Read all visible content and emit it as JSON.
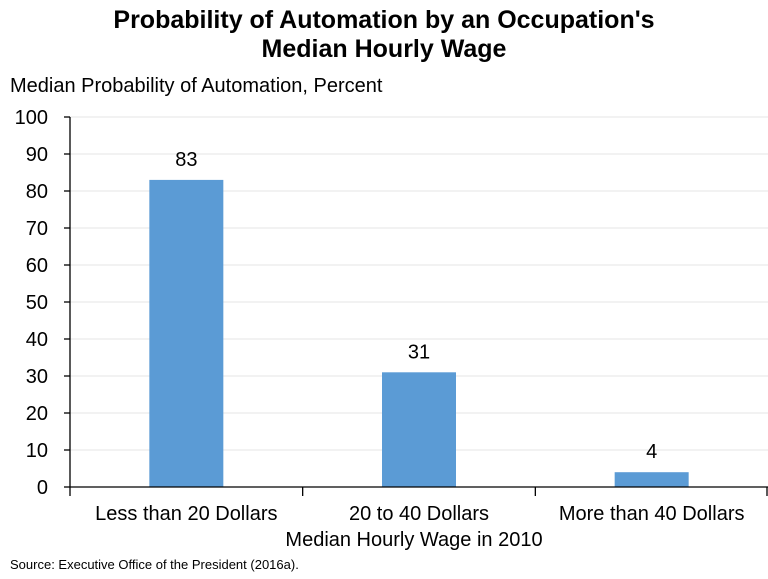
{
  "chart_data": {
    "type": "bar",
    "title_line1": "Probability of Automation by an Occupation's",
    "title_line2": "Median Hourly Wage",
    "ylabel": "Median Probability of Automation, Percent",
    "xlabel": "Median Hourly Wage in 2010",
    "categories": [
      "Less than 20 Dollars",
      "20 to 40 Dollars",
      "More than 40 Dollars"
    ],
    "values": [
      83,
      31,
      4
    ],
    "ylim": [
      0,
      100
    ],
    "yticks": [
      0,
      10,
      20,
      30,
      40,
      50,
      60,
      70,
      80,
      90,
      100
    ],
    "grid": true,
    "bar_color": "#5b9bd5",
    "source": "Source: Executive Office of the President (2016a)."
  }
}
